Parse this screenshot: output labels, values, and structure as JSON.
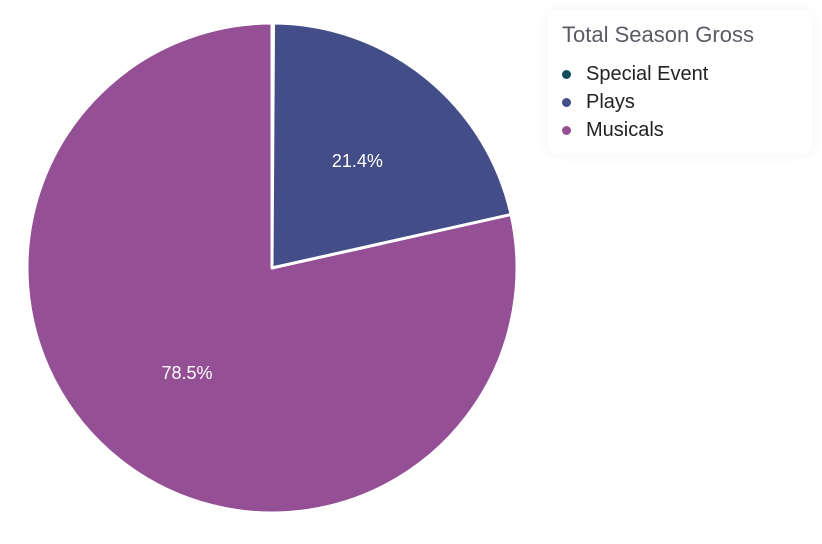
{
  "chart_data": {
    "type": "pie",
    "title": "Total Season Gross",
    "legend_position": "top-right",
    "series": [
      {
        "name": "Total Season Gross",
        "slices": [
          {
            "label": "Special Event",
            "value": 0.1,
            "color": "#0f4c5c",
            "display": ""
          },
          {
            "label": "Plays",
            "value": 21.4,
            "color": "#434d87",
            "display": "21.4%"
          },
          {
            "label": "Musicals",
            "value": 78.5,
            "color": "#944f95",
            "display": "78.5%"
          }
        ]
      }
    ]
  }
}
